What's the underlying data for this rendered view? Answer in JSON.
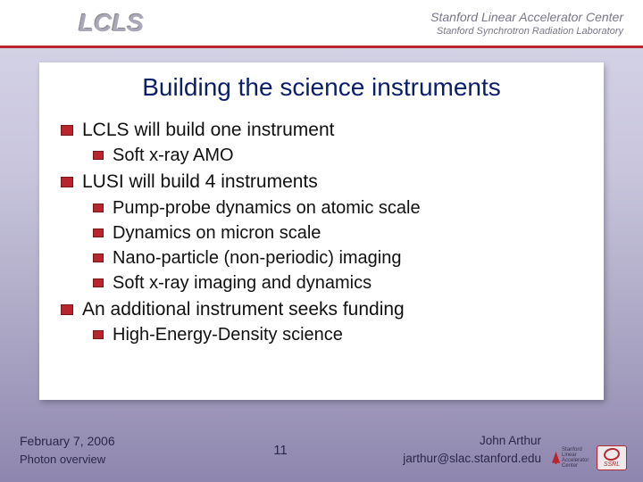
{
  "header": {
    "logo_left": "LCLS",
    "logo_right_line1": "Stanford Linear Accelerator Center",
    "logo_right_line2": "Stanford Synchrotron Radiation Laboratory"
  },
  "title": "Building the science instruments",
  "bullets": {
    "b0": "LCLS will build one instrument",
    "b0_0": "Soft x-ray AMO",
    "b1": "LUSI will build 4 instruments",
    "b1_0": "Pump-probe dynamics on atomic scale",
    "b1_1": "Dynamics on micron scale",
    "b1_2": "Nano-particle (non-periodic) imaging",
    "b1_3": "Soft x-ray imaging and dynamics",
    "b2": "An additional instrument seeks funding",
    "b2_0": "High-Energy-Density science"
  },
  "footer": {
    "date": "February 7, 2006",
    "subtitle": "Photon overview",
    "page": "11",
    "author": "John Arthur",
    "email": "jarthur@slac.stanford.edu",
    "stanford_line1": "Stanford Linear",
    "stanford_line2": "Accelerator",
    "stanford_line3": "Center",
    "ssrl": "SSRL"
  },
  "colors": {
    "accent_red": "#b8252c",
    "title_blue": "#0a1e6a",
    "bg_top": "#d8d6e8",
    "bg_bottom": "#8e86ae"
  }
}
